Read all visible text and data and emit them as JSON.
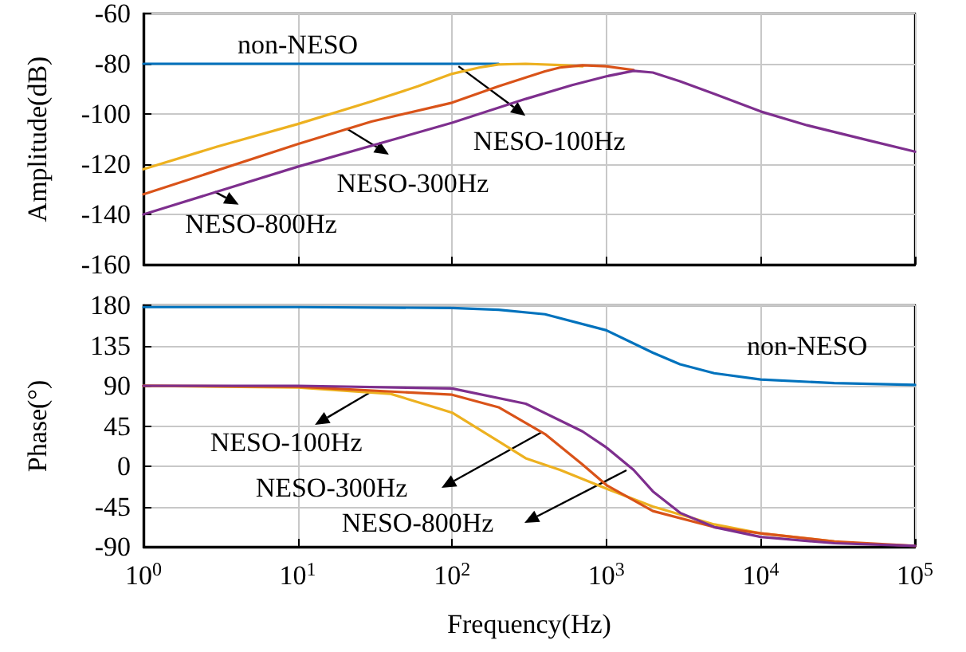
{
  "chart_data": [
    {
      "type": "line",
      "ylabel": "Amplitude(dB)",
      "log": "x",
      "grid": true,
      "tick_labels": "y",
      "marker": "none",
      "line_style": "solid",
      "xlim": [
        1,
        100000
      ],
      "xticks": [
        {
          "value": 1,
          "label": null
        },
        {
          "value": 10,
          "label": null
        },
        {
          "value": 100,
          "label": null
        },
        {
          "value": 1000,
          "label": null
        },
        {
          "value": 10000,
          "label": null
        },
        {
          "value": 100000,
          "label": null
        }
      ],
      "ylim": [
        -160,
        -60
      ],
      "yticks": [
        -160,
        -140,
        -120,
        -100,
        -80,
        -60
      ],
      "series": [
        {
          "color": "#0072bd",
          "x": [
            1,
            10,
            100,
            200
          ],
          "values": [
            -80,
            -80,
            -80,
            -80
          ]
        },
        {
          "color": "#edb120",
          "x": [
            1,
            3,
            10,
            30,
            60,
            100,
            150,
            200,
            300,
            500,
            700
          ],
          "values": [
            -122,
            -113,
            -104,
            -95,
            -89,
            -84,
            -81.5,
            -80.3,
            -80,
            -80.5,
            -81
          ]
        },
        {
          "color": "#d95319",
          "x": [
            1,
            10,
            30,
            100,
            200,
            300,
            400,
            500,
            700,
            1000,
            1500
          ],
          "values": [
            -132,
            -112,
            -103,
            -95.5,
            -89,
            -85.5,
            -83,
            -81.5,
            -80.6,
            -81,
            -82.5
          ]
        },
        {
          "color": "#7e2f8e",
          "x": [
            1,
            10,
            100,
            300,
            600,
            1000,
            1500,
            2000,
            3000,
            5000,
            10000,
            20000,
            50000,
            100000
          ],
          "values": [
            -140,
            -121,
            -103.5,
            -94,
            -88.5,
            -85,
            -82.8,
            -83.5,
            -87,
            -92,
            -99,
            -104.5,
            -110.5,
            -115
          ]
        }
      ],
      "annotations": [
        {
          "text": "non-NESO",
          "x": 10,
          "y": -80
        },
        {
          "text": "NESO-100Hz",
          "x": 110,
          "y": -81
        },
        {
          "text": "NESO-300Hz",
          "x": 21,
          "y": -106
        },
        {
          "text": "NESO-800Hz",
          "x": 2.9,
          "y": -131
        }
      ]
    },
    {
      "type": "line",
      "xlabel": "Frequency(Hz)",
      "ylabel": "Phase(°)",
      "log": "x",
      "grid": true,
      "marker": "none",
      "line_style": "solid",
      "xlim": [
        1,
        100000
      ],
      "xticks": [
        {
          "value": 1,
          "label": "10$^{0}$"
        },
        {
          "value": 10,
          "label": "10$^{1}$"
        },
        {
          "value": 100,
          "label": "10$^{2}$"
        },
        {
          "value": 1000,
          "label": "10$^{3}$"
        },
        {
          "value": 10000,
          "label": "10$^{4}$"
        },
        {
          "value": 100000,
          "label": "10$^{5}$"
        }
      ],
      "ylim": [
        -90,
        180
      ],
      "yticks": [
        -90,
        -45,
        0,
        45,
        90,
        135,
        180
      ],
      "series": [
        {
          "color": "#0072bd",
          "x": [
            1,
            10,
            100,
            200,
            400,
            1000,
            2000,
            3000,
            5000,
            10000,
            30000,
            100000
          ],
          "values": [
            178,
            178,
            177,
            175,
            170,
            152,
            127,
            114,
            104,
            97,
            93,
            91
          ]
        },
        {
          "color": "#edb120",
          "x": [
            1,
            10,
            40,
            100,
            200,
            300,
            500,
            1000,
            2000,
            5000,
            10000,
            30000
          ],
          "values": [
            90,
            88,
            81,
            60,
            28,
            9,
            -4,
            -25,
            -45,
            -65,
            -75,
            -84
          ]
        },
        {
          "color": "#d95319",
          "x": [
            1,
            10,
            100,
            200,
            400,
            700,
            1000,
            2000,
            5000,
            10000,
            30000,
            100000
          ],
          "values": [
            90,
            89,
            80,
            66,
            36,
            2,
            -21,
            -50,
            -68,
            -75,
            -84,
            -89
          ]
        },
        {
          "color": "#7e2f8e",
          "x": [
            1,
            10,
            100,
            300,
            700,
            1000,
            1500,
            2000,
            3000,
            5000,
            10000,
            30000,
            100000
          ],
          "values": [
            90,
            90,
            87,
            70,
            39,
            21,
            -4,
            -28,
            -52,
            -68,
            -79,
            -86,
            -89
          ]
        }
      ],
      "annotations": [
        {
          "text": "NESO-100Hz",
          "x": 29,
          "y": 82
        },
        "NESO-300Hz",
        "NESO-800Hz",
        {
          "text": "non-NESO",
          "x": 20000,
          "y": 95
        }
      ]
    }
  ]
}
